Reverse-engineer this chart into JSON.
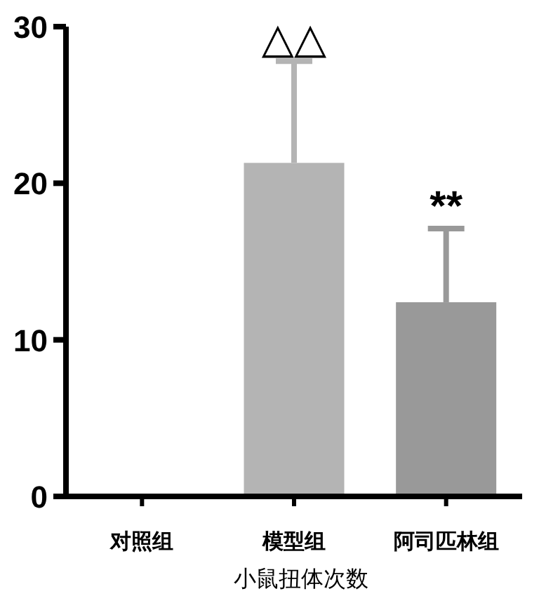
{
  "chart_data": {
    "type": "bar",
    "xlabel": "小鼠扭体次数",
    "categories": [
      "对照组",
      "模型组",
      "阿司匹林组"
    ],
    "values": [
      0,
      21.3,
      12.4
    ],
    "colors": [
      "#b4b4b4",
      "#b4b4b4",
      "#999999"
    ],
    "errors": [
      null,
      [
        21.3,
        27.8
      ],
      [
        12.4,
        17.1
      ]
    ],
    "ylim": [
      0,
      30
    ],
    "yticks": [
      0,
      10,
      20,
      30
    ],
    "grid": false,
    "annotations": [
      {
        "text": "△△",
        "x": "模型组",
        "y": 27.8
      },
      {
        "text": "**",
        "x": "阿司匹林组",
        "y": 17.1
      }
    ]
  }
}
